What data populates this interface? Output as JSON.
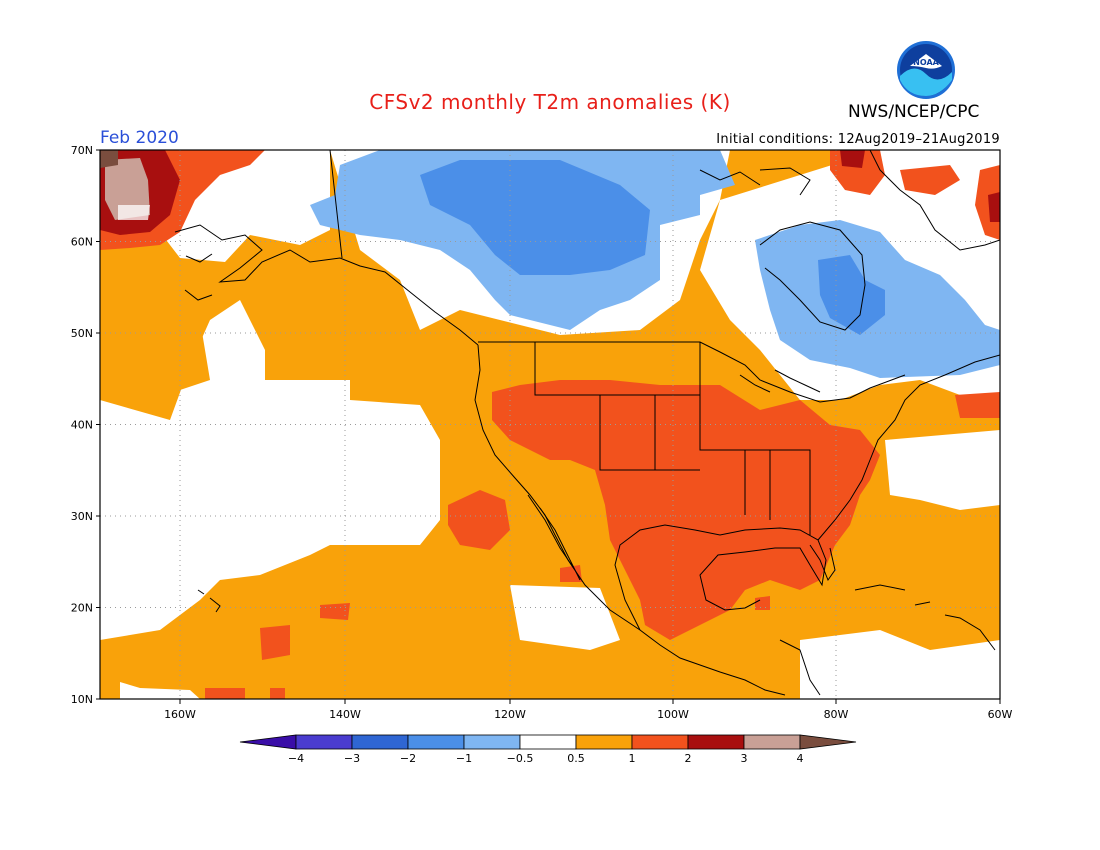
{
  "title": "CFSv2 monthly T2m anomalies (K)",
  "agency": "NWS/NCEP/CPC",
  "logo_text": "NOAA",
  "month": "Feb 2020",
  "initial_conditions": "Initial conditions: 12Aug2019–21Aug2019",
  "lat_labels": [
    "70N",
    "60N",
    "50N",
    "40N",
    "30N",
    "20N",
    "10N"
  ],
  "lon_labels": [
    "160W",
    "140W",
    "120W",
    "100W",
    "80W",
    "60W"
  ],
  "colorbar": {
    "labels": [
      "−4",
      "−3",
      "−2",
      "−1",
      "−0.5",
      "0.5",
      "1",
      "2",
      "3",
      "4"
    ],
    "colors": [
      "#3a0ea8",
      "#4a3ccf",
      "#2f66d3",
      "#4b8fe8",
      "#7fb6f2",
      "#ffffff",
      "#f9a20a",
      "#f2521d",
      "#a80f0f",
      "#c9a096",
      "#7a4d3e"
    ]
  },
  "colors": {
    "coast": "#000000",
    "grid": "#888888"
  }
}
